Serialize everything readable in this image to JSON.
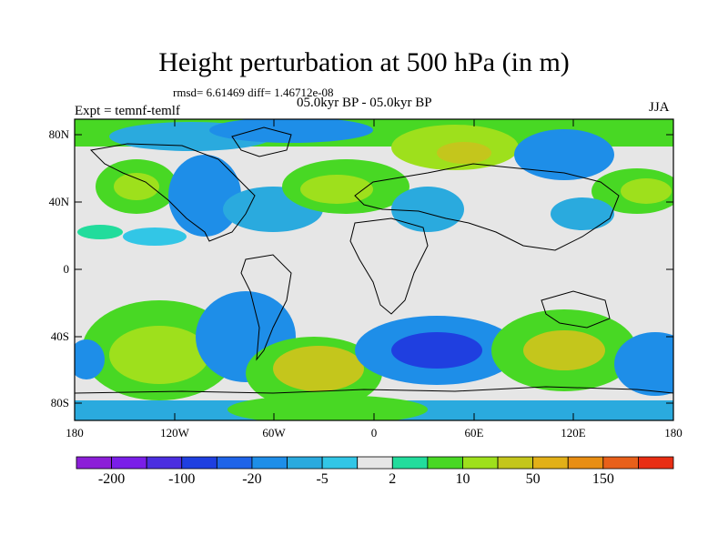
{
  "title": "Height perturbation at 500 hPa (in m)",
  "stats_text": "rmsd= 6.61469 diff= 1.46712e-08",
  "period_text": "05.0kyr BP - 05.0kyr BP",
  "experiment_text": "Expt = temnf-temlf",
  "season_text": "JJA",
  "lat_labels": [
    "80N",
    "40N",
    "0",
    "40S",
    "80S"
  ],
  "lon_labels": [
    "180",
    "120W",
    "60W",
    "0",
    "60E",
    "120E",
    "180"
  ],
  "colorbar": {
    "colors": [
      "#8c1ed8",
      "#7a1ee8",
      "#4b2ee0",
      "#1f3fe0",
      "#1f64e8",
      "#1e8ee8",
      "#2aaade",
      "#32c6e6",
      "#e6e6e6",
      "#22dc9c",
      "#48d824",
      "#9ee01c",
      "#c4c61c",
      "#e2b018",
      "#e88e14",
      "#e8601a",
      "#e82e14"
    ],
    "tick_labels": [
      "-200",
      "-100",
      "-20",
      "-5",
      "2",
      "10",
      "50",
      "150"
    ]
  }
}
